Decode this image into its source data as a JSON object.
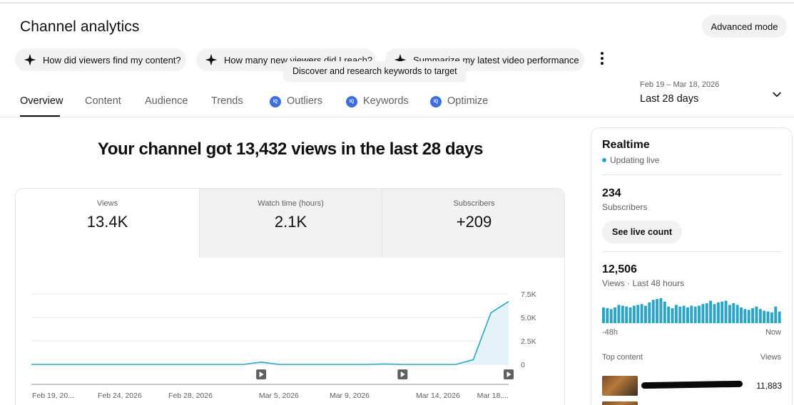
{
  "page": {
    "title": "Channel analytics",
    "advanced_mode_label": "Advanced mode"
  },
  "suggestion_chips": [
    "How did viewers find my content?",
    "How many new viewers did I reach?",
    "Summarize my latest video performance"
  ],
  "tooltip": "Discover and research keywords to target",
  "tabs": [
    {
      "label": "Overview",
      "active": true,
      "badge": false
    },
    {
      "label": "Content",
      "active": false,
      "badge": false
    },
    {
      "label": "Audience",
      "active": false,
      "badge": false
    },
    {
      "label": "Trends",
      "active": false,
      "badge": false
    },
    {
      "label": "Outliers",
      "active": false,
      "badge": true
    },
    {
      "label": "Keywords",
      "active": false,
      "badge": true
    },
    {
      "label": "Optimize",
      "active": false,
      "badge": true
    }
  ],
  "tab_badge_text": "IQ",
  "date_picker": {
    "range": "Feb 19 – Mar 18, 2026",
    "label": "Last 28 days"
  },
  "headline": "Your channel got 13,432 views in the last 28 days",
  "metrics": [
    {
      "label": "Views",
      "value": "13.4K",
      "selected": true
    },
    {
      "label": "Watch time (hours)",
      "value": "2.1K",
      "selected": false
    },
    {
      "label": "Subscribers",
      "value": "+209",
      "selected": false
    }
  ],
  "chart_data": {
    "type": "area",
    "x": [
      "Feb 19",
      "Feb 20",
      "Feb 21",
      "Feb 22",
      "Feb 23",
      "Feb 24",
      "Feb 25",
      "Feb 26",
      "Feb 27",
      "Feb 28",
      "Mar 1",
      "Mar 2",
      "Mar 3",
      "Mar 4",
      "Mar 5",
      "Mar 6",
      "Mar 7",
      "Mar 8",
      "Mar 9",
      "Mar 10",
      "Mar 11",
      "Mar 12",
      "Mar 13",
      "Mar 14",
      "Mar 15",
      "Mar 16",
      "Mar 17",
      "Mar 18"
    ],
    "series": [
      {
        "values": [
          0,
          0,
          0,
          0,
          0,
          0,
          0,
          0,
          0,
          0,
          0,
          0,
          0,
          250,
          0,
          0,
          0,
          0,
          0,
          0,
          50,
          0,
          0,
          0,
          0,
          500,
          5500,
          6700
        ]
      }
    ],
    "x_tick_labels": [
      "Feb 19, 20...",
      "Feb 24, 2026",
      "Feb 28, 2026",
      "Mar 5, 2026",
      "Mar 9, 2026",
      "Mar 14, 2026",
      "Mar 18,..."
    ],
    "y_tick_labels": [
      "7.5K",
      "5.0K",
      "2.5K",
      "0"
    ],
    "y_ticks": [
      7500,
      5000,
      2500,
      0
    ],
    "ylim": [
      0,
      7500
    ],
    "video_markers": [
      "Mar 4",
      "Mar 12",
      "Mar 18"
    ],
    "color": "#2ba5c6",
    "fill": "#e3f3f8",
    "grid": true
  },
  "realtime": {
    "title": "Realtime",
    "status": "Updating live",
    "subscribers_value": "234",
    "subscribers_label": "Subscribers",
    "live_count_button": "See live count",
    "views_value": "12,506",
    "views_label": "Views · Last 48 hours",
    "axis_start": "-48h",
    "axis_end": "Now",
    "top_content_header": "Top content",
    "views_header": "Views",
    "top_item_views": "11,883",
    "bars": [
      19,
      18,
      17,
      19,
      22,
      21,
      20,
      19,
      21,
      22,
      23,
      21,
      25,
      28,
      29,
      30,
      26,
      20,
      18,
      22,
      20,
      21,
      19,
      21,
      20,
      21,
      23,
      24,
      27,
      23,
      25,
      26,
      27,
      22,
      24,
      22,
      19,
      17,
      16,
      18,
      20,
      17,
      15,
      14,
      13,
      20,
      14
    ],
    "bar_color": "#2ba5c6"
  }
}
